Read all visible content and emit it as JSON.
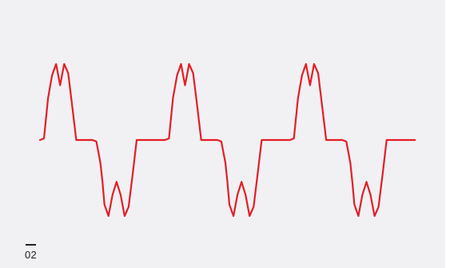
{
  "figure": {
    "number_label": "02"
  },
  "colors": {
    "background": "#f1f1f3",
    "waveform": "#e41e26",
    "text": "#222222"
  },
  "chart_data": {
    "type": "line",
    "title": "",
    "xlabel": "",
    "ylabel": "",
    "grid": false,
    "legend": "none",
    "periods": 3,
    "xlim": [
      0,
      3
    ],
    "ylim": [
      -1,
      1
    ],
    "series": [
      {
        "name": "",
        "x": [
          0,
          0.0323,
          0.0645,
          0.0968,
          0.129,
          0.1613,
          0.1935,
          0.2258,
          0.2581,
          0.2903,
          0.3226,
          0.3548,
          0.3871,
          0.4194,
          0.4516,
          0.4839,
          0.5,
          0.5161,
          0.5484,
          0.5806,
          0.6129,
          0.6452,
          0.6774,
          0.7097,
          0.7419,
          0.7742,
          0.8065,
          0.8387,
          0.871,
          0.9032,
          0.9355,
          0.9677,
          1
        ],
        "y": [
          0,
          0.02,
          0.55,
          0.85,
          1.0,
          0.72,
          1.0,
          0.88,
          0.45,
          0.0,
          0.0,
          0.0,
          0.0,
          0.0,
          -0.02,
          -0.3,
          -0.55,
          -0.85,
          -1.0,
          -0.72,
          -0.55,
          -0.72,
          -1.0,
          -0.88,
          -0.45,
          0.0,
          0.0,
          0.0,
          0.0,
          0.0,
          0.0,
          0.0,
          0.0
        ]
      }
    ]
  }
}
